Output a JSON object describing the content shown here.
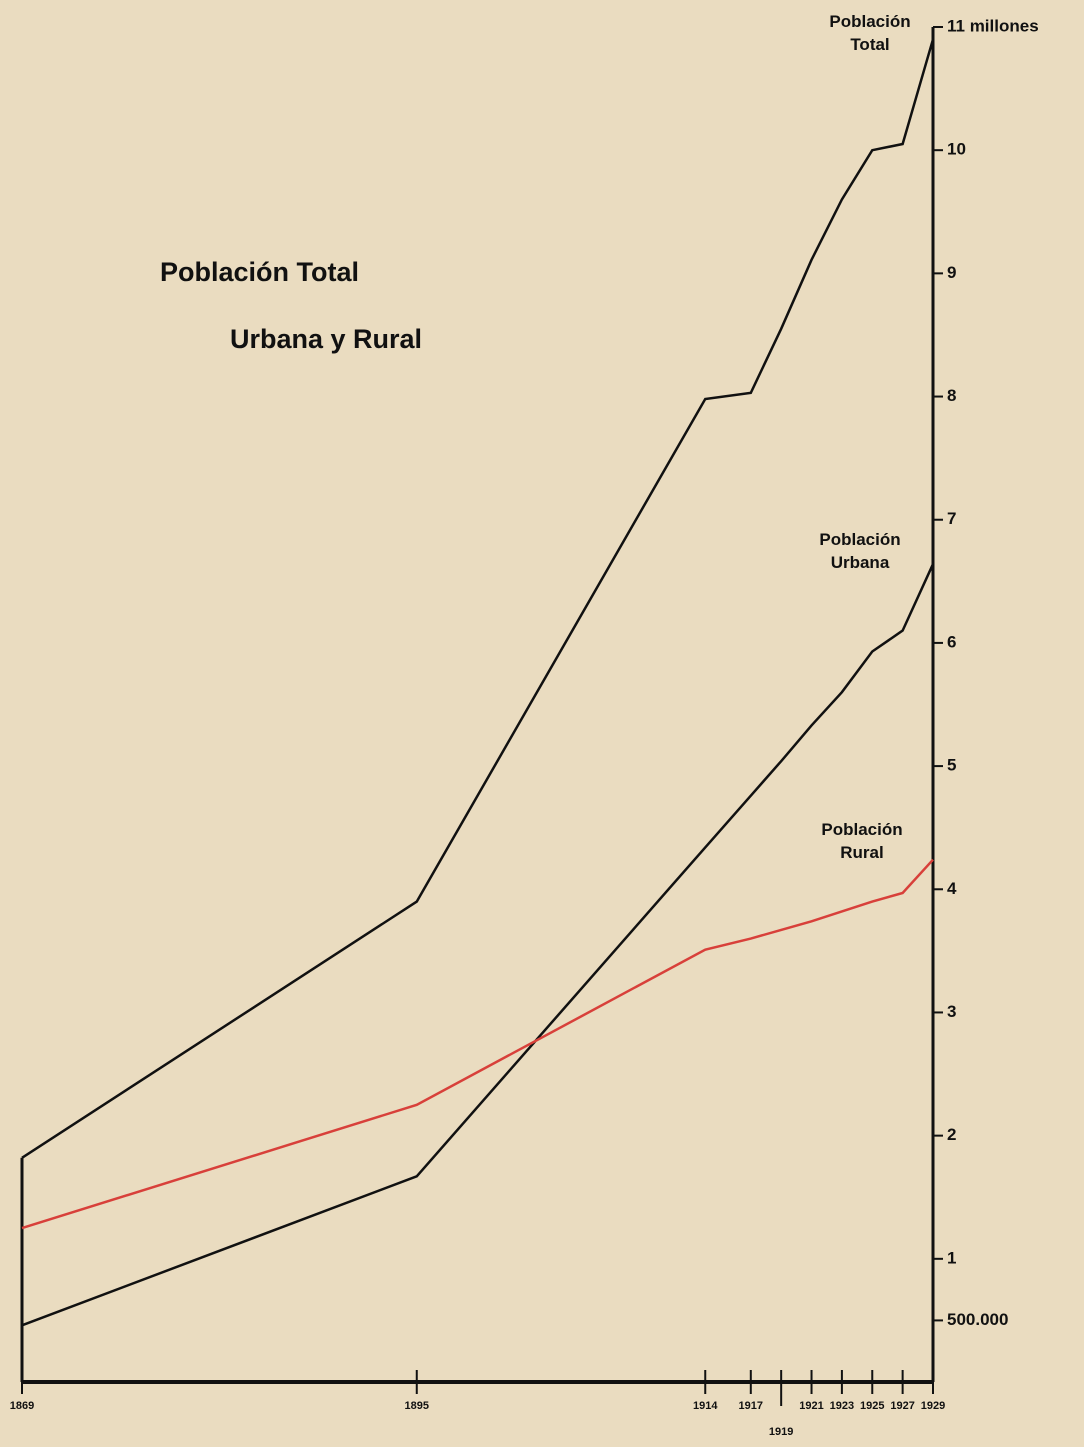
{
  "chart_data": {
    "type": "line",
    "title": "Población Total",
    "subtitle": "Urbana y Rural",
    "x": [
      1869,
      1895,
      1914,
      1917,
      1919,
      1921,
      1923,
      1925,
      1927,
      1929
    ],
    "series": [
      {
        "name": "Población Total",
        "color": "#111111",
        "values": [
          1.82,
          3.9,
          7.98,
          8.03,
          8.55,
          9.11,
          9.6,
          10.0,
          10.05,
          10.9
        ]
      },
      {
        "name": "Población Urbana",
        "color": "#111111",
        "values": [
          0.46,
          1.67,
          4.34,
          4.76,
          5.04,
          5.33,
          5.6,
          5.93,
          6.1,
          6.64
        ]
      },
      {
        "name": "Población Rural",
        "color": "#d8403a",
        "values": [
          1.25,
          2.25,
          3.51,
          3.6,
          3.67,
          3.74,
          3.82,
          3.9,
          3.97,
          4.24
        ]
      }
    ],
    "xlim": [
      1869,
      1929
    ],
    "xticks": [
      1869,
      1895,
      1914,
      1917,
      1919,
      1921,
      1923,
      1925,
      1927,
      1929
    ],
    "ylim": [
      0,
      11
    ],
    "yticks": [
      {
        "value": 0.5,
        "label": "500.000"
      },
      1,
      2,
      3,
      4,
      5,
      6,
      7,
      8,
      9,
      10,
      {
        "value": 11,
        "label": "11 millones"
      }
    ]
  }
}
